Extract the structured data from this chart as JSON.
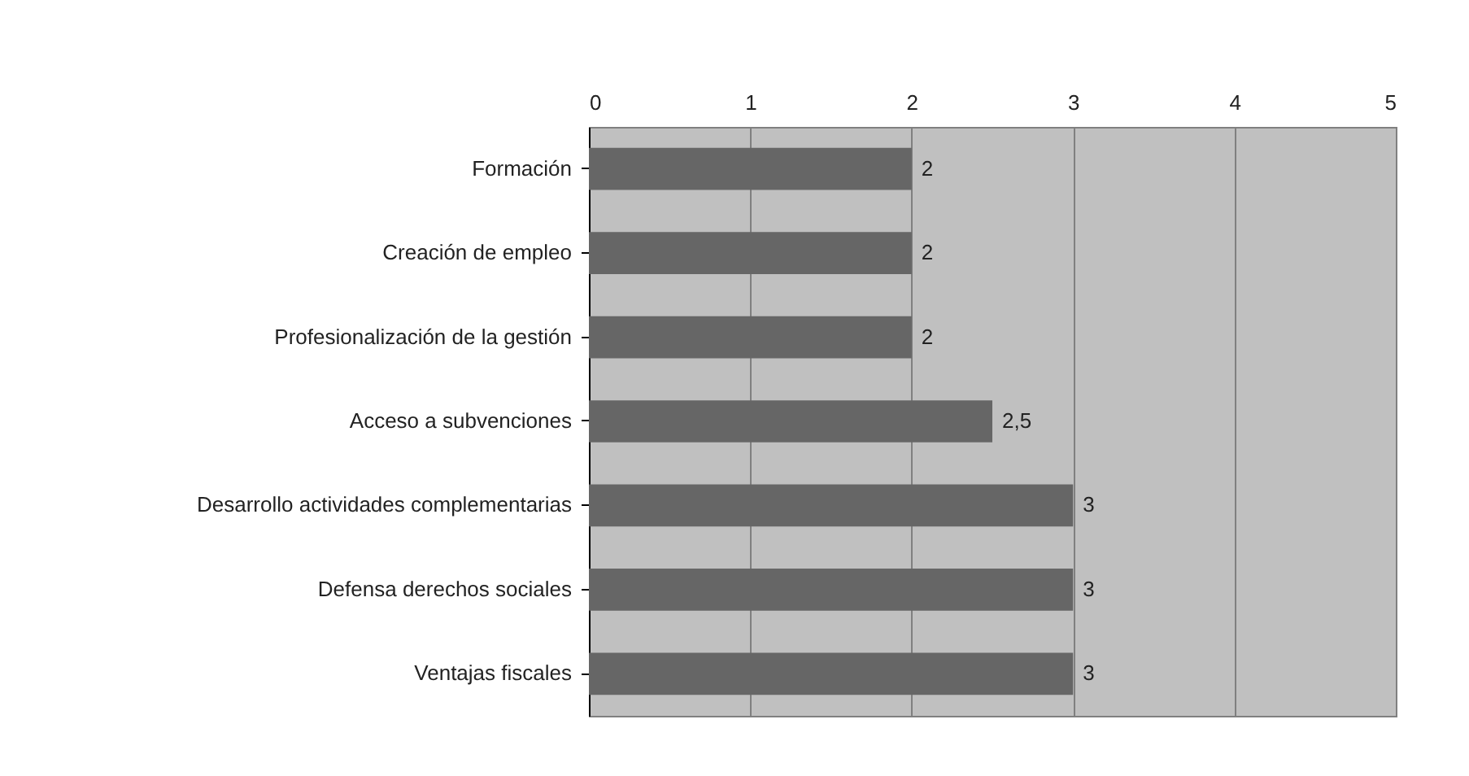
{
  "chart_data": {
    "type": "bar",
    "orientation": "horizontal",
    "categories": [
      "Formación",
      "Creación de empleo",
      "Profesionalización de la gestión",
      "Acceso a subvenciones",
      "Desarrollo actividades complementarias",
      "Defensa derechos sociales",
      "Ventajas fiscales"
    ],
    "values": [
      2,
      2,
      2,
      2.5,
      3,
      3,
      3
    ],
    "value_labels": [
      "2",
      "2",
      "2",
      "2,5",
      "3",
      "3",
      "3"
    ],
    "color": "#666666",
    "xlim": [
      0,
      5
    ],
    "xticks": [
      0,
      1,
      2,
      3,
      4,
      5
    ],
    "grid": "x"
  }
}
